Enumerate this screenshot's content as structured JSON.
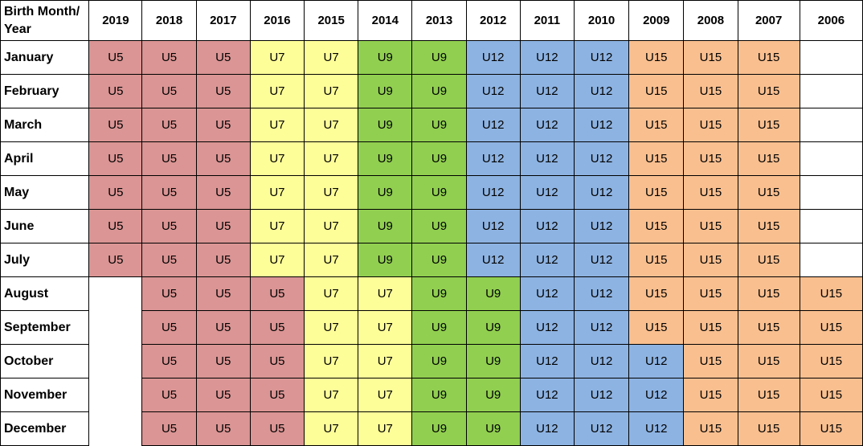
{
  "corner_label": "Birth Month/ Year",
  "colors": {
    "U5": "#da9594",
    "U7": "#fefe99",
    "U9": "#91cf50",
    "U12": "#8db3e2",
    "U15": "#f9bf8f"
  },
  "years": [
    "2019",
    "2018",
    "2017",
    "2016",
    "2015",
    "2014",
    "2013",
    "2012",
    "2011",
    "2010",
    "2009",
    "2008",
    "2007",
    "2006"
  ],
  "rows": [
    {
      "month": "January",
      "cells": [
        "U5",
        "U5",
        "U5",
        "U7",
        "U7",
        "U9",
        "U9",
        "U12",
        "U12",
        "U12",
        "U15",
        "U15",
        "U15",
        ""
      ]
    },
    {
      "month": "February",
      "cells": [
        "U5",
        "U5",
        "U5",
        "U7",
        "U7",
        "U9",
        "U9",
        "U12",
        "U12",
        "U12",
        "U15",
        "U15",
        "U15",
        ""
      ]
    },
    {
      "month": "March",
      "cells": [
        "U5",
        "U5",
        "U5",
        "U7",
        "U7",
        "U9",
        "U9",
        "U12",
        "U12",
        "U12",
        "U15",
        "U15",
        "U15",
        ""
      ]
    },
    {
      "month": "April",
      "cells": [
        "U5",
        "U5",
        "U5",
        "U7",
        "U7",
        "U9",
        "U9",
        "U12",
        "U12",
        "U12",
        "U15",
        "U15",
        "U15",
        ""
      ]
    },
    {
      "month": "May",
      "cells": [
        "U5",
        "U5",
        "U5",
        "U7",
        "U7",
        "U9",
        "U9",
        "U12",
        "U12",
        "U12",
        "U15",
        "U15",
        "U15",
        ""
      ]
    },
    {
      "month": "June",
      "cells": [
        "U5",
        "U5",
        "U5",
        "U7",
        "U7",
        "U9",
        "U9",
        "U12",
        "U12",
        "U12",
        "U15",
        "U15",
        "U15",
        ""
      ]
    },
    {
      "month": "July",
      "cells": [
        "U5",
        "U5",
        "U5",
        "U7",
        "U7",
        "U9",
        "U9",
        "U12",
        "U12",
        "U12",
        "U15",
        "U15",
        "U15",
        ""
      ]
    },
    {
      "month": "August",
      "cells": [
        "",
        "U5",
        "U5",
        "U5",
        "U7",
        "U7",
        "U9",
        "U9",
        "U12",
        "U12",
        "U15",
        "U15",
        "U15",
        "U15"
      ]
    },
    {
      "month": "September",
      "cells": [
        "",
        "U5",
        "U5",
        "U5",
        "U7",
        "U7",
        "U9",
        "U9",
        "U12",
        "U12",
        "U15",
        "U15",
        "U15",
        "U15"
      ]
    },
    {
      "month": "October",
      "cells": [
        "",
        "U5",
        "U5",
        "U5",
        "U7",
        "U7",
        "U9",
        "U9",
        "U12",
        "U12",
        "U12",
        "U15",
        "U15",
        "U15"
      ]
    },
    {
      "month": "November",
      "cells": [
        "",
        "U5",
        "U5",
        "U5",
        "U7",
        "U7",
        "U9",
        "U9",
        "U12",
        "U12",
        "U12",
        "U15",
        "U15",
        "U15"
      ]
    },
    {
      "month": "December",
      "cells": [
        "",
        "U5",
        "U5",
        "U5",
        "U7",
        "U7",
        "U9",
        "U9",
        "U12",
        "U12",
        "U12",
        "U15",
        "U15",
        "U15"
      ]
    }
  ]
}
